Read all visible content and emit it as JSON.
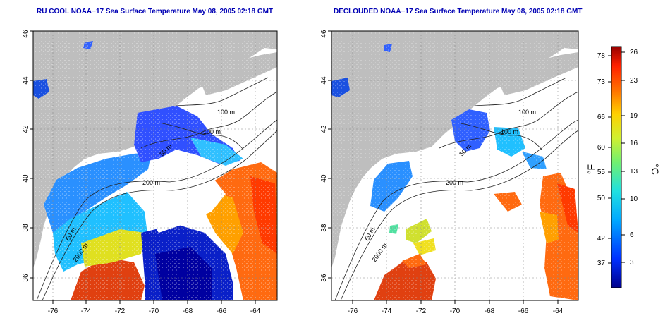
{
  "left_panel": {
    "title": "RU COOL NOAA−17 Sea Surface Temperature May 08, 2005 02:18 GMT",
    "x_ticks": [
      "-76",
      "-74",
      "-72",
      "-70",
      "-68",
      "-66",
      "-64"
    ],
    "y_ticks": [
      "36",
      "38",
      "40",
      "42",
      "44",
      "46"
    ],
    "contour_labels": [
      "100 m",
      "100 m",
      "50 m",
      "200 m",
      "50 m",
      "2000 m"
    ]
  },
  "right_panel": {
    "title": "DECLOUDED NOAA−17 Sea Surface Temperature May 08, 2005 02:18 GMT",
    "x_ticks": [
      "-76",
      "-74",
      "-72",
      "-70",
      "-68",
      "-66",
      "-64"
    ],
    "y_ticks": [
      "36",
      "38",
      "40",
      "42",
      "44",
      "46"
    ],
    "contour_labels": [
      "100 m",
      "100 m",
      "50 m",
      "200 m",
      "50 m",
      "2000 m"
    ]
  },
  "colorbar": {
    "fahrenheit_label": "°F",
    "celsius_label": "°C",
    "fahrenheit_ticks": [
      "78",
      "73",
      "66",
      "60",
      "55",
      "50",
      "42",
      "37"
    ],
    "celsius_ticks": [
      "26",
      "23",
      "19",
      "16",
      "13",
      "10",
      "6",
      "3"
    ]
  },
  "colors": {
    "title": "#0000b4",
    "land": "#bebebe",
    "cloud": "#ffffff",
    "warm": "#d22000",
    "cold": "#0000a0"
  }
}
